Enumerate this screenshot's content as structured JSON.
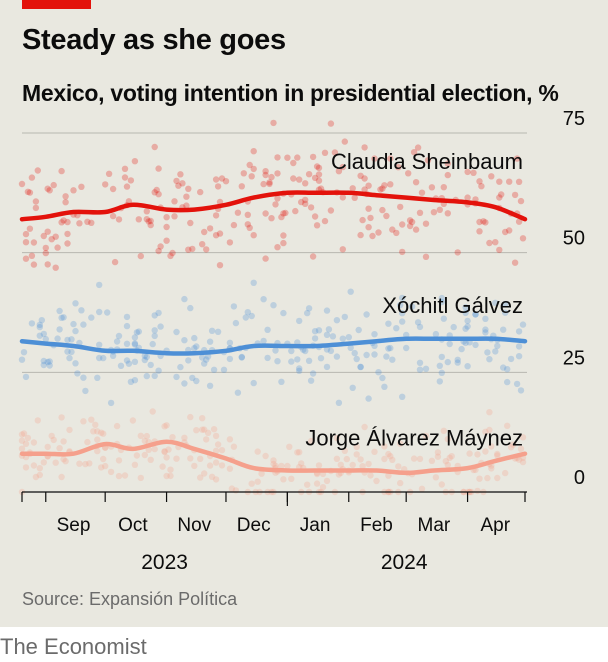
{
  "header": {
    "title": "Steady as she goes",
    "subtitle": "Mexico, voting intention in presidential election, %"
  },
  "footer": {
    "source": "Source: Expansión Política",
    "brand": "The Economist"
  },
  "colors": {
    "accent": "#e3120b",
    "sheinbaum": "#e3120b",
    "galvez": "#4d8fd6",
    "maynez": "#f5a08c",
    "background": "#e9e8e0"
  },
  "chart_data": {
    "type": "line",
    "title": "Steady as she goes",
    "ylabel": "Mexico, voting intention in presidential election, %",
    "ylim": [
      0,
      75
    ],
    "yticks": [
      0,
      25,
      50,
      75
    ],
    "x_range": [
      "2023-08-20",
      "2024-04-30"
    ],
    "months": [
      {
        "label": "Sep",
        "date": "2023-09-15"
      },
      {
        "label": "Oct",
        "date": "2023-10-15"
      },
      {
        "label": "Nov",
        "date": "2023-11-15"
      },
      {
        "label": "Dec",
        "date": "2023-12-15"
      },
      {
        "label": "Jan",
        "date": "2024-01-15"
      },
      {
        "label": "Feb",
        "date": "2024-02-15"
      },
      {
        "label": "Mar",
        "date": "2024-03-15"
      },
      {
        "label": "Apr",
        "date": "2024-04-15"
      }
    ],
    "years": [
      {
        "label": "2023",
        "date": "2023-10-31"
      },
      {
        "label": "2024",
        "date": "2024-02-29"
      }
    ],
    "grid": true,
    "points_shown": "individual daily poll results shown as faint dots around each trend line",
    "series": [
      {
        "name": "Claudia Sheinbaum",
        "color_key": "sheinbaum",
        "x": [
          "2023-08-20",
          "2023-09-01",
          "2023-09-15",
          "2023-10-01",
          "2023-10-15",
          "2023-11-01",
          "2023-11-15",
          "2023-12-01",
          "2023-12-15",
          "2024-01-01",
          "2024-01-15",
          "2024-02-01",
          "2024-02-15",
          "2024-03-01",
          "2024-03-15",
          "2024-04-01",
          "2024-04-15",
          "2024-04-30"
        ],
        "y": [
          57,
          57.5,
          58.5,
          58.5,
          60,
          59,
          59,
          60,
          61.5,
          62.5,
          62.5,
          62.5,
          62,
          61.5,
          61,
          60.5,
          59.5,
          57
        ]
      },
      {
        "name": "Xóchitl Gálvez",
        "color_key": "galvez",
        "x": [
          "2023-08-20",
          "2023-09-01",
          "2023-09-15",
          "2023-10-01",
          "2023-10-15",
          "2023-11-01",
          "2023-11-15",
          "2023-12-01",
          "2023-12-15",
          "2024-01-01",
          "2024-01-15",
          "2024-02-01",
          "2024-02-15",
          "2024-03-01",
          "2024-03-15",
          "2024-04-01",
          "2024-04-15",
          "2024-04-30"
        ],
        "y": [
          31.5,
          31,
          30.5,
          29.5,
          29.5,
          29,
          29,
          29.5,
          30.5,
          30.5,
          30.5,
          31,
          31.5,
          32,
          32,
          32,
          32,
          31.5
        ]
      },
      {
        "name": "Jorge Álvarez Máynez",
        "color_key": "maynez",
        "x": [
          "2023-08-20",
          "2023-09-01",
          "2023-09-15",
          "2023-10-01",
          "2023-10-15",
          "2023-11-01",
          "2023-11-15",
          "2023-12-01",
          "2023-12-15",
          "2024-01-01",
          "2024-01-15",
          "2024-02-01",
          "2024-02-15",
          "2024-03-01",
          "2024-03-15",
          "2024-04-01",
          "2024-04-15",
          "2024-04-30"
        ],
        "y": [
          8,
          8,
          8,
          10,
          9,
          10.5,
          9,
          7,
          5,
          4.5,
          4.5,
          4.5,
          4.5,
          4,
          4.5,
          5,
          6.5,
          8
        ]
      }
    ]
  }
}
